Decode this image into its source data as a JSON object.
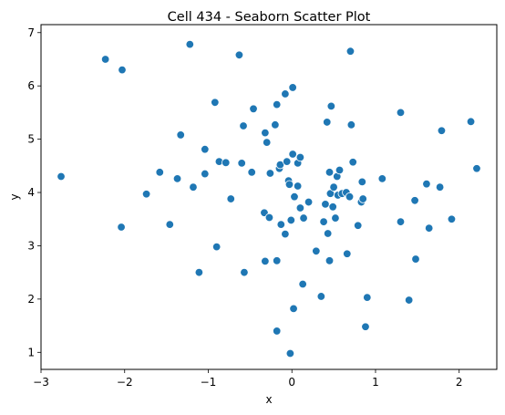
{
  "chart_data": {
    "type": "scatter",
    "title": "Cell 434 - Seaborn Scatter Plot",
    "xlabel": "x",
    "ylabel": "y",
    "xlim": [
      -3.0,
      2.45
    ],
    "ylim": [
      0.68,
      7.15
    ],
    "xticks": [
      -3,
      -2,
      -1,
      0,
      1,
      2
    ],
    "yticks": [
      1,
      2,
      3,
      4,
      5,
      6,
      7
    ],
    "grid": false,
    "marker_color": "#1f77b4",
    "marker_edge": "#ffffff",
    "points": [
      [
        -2.76,
        4.3
      ],
      [
        -2.23,
        6.5
      ],
      [
        -2.04,
        3.35
      ],
      [
        -2.03,
        6.3
      ],
      [
        -1.74,
        3.97
      ],
      [
        -1.58,
        4.38
      ],
      [
        -1.46,
        3.4
      ],
      [
        -1.37,
        4.26
      ],
      [
        -1.33,
        5.08
      ],
      [
        -1.18,
        4.1
      ],
      [
        -1.22,
        6.78
      ],
      [
        -1.11,
        2.5
      ],
      [
        -1.04,
        4.81
      ],
      [
        -1.04,
        4.35
      ],
      [
        -0.92,
        5.69
      ],
      [
        -0.9,
        2.98
      ],
      [
        -0.87,
        4.58
      ],
      [
        -0.79,
        4.56
      ],
      [
        -0.73,
        3.88
      ],
      [
        -0.63,
        6.58
      ],
      [
        -0.6,
        4.55
      ],
      [
        -0.58,
        5.25
      ],
      [
        -0.57,
        2.5
      ],
      [
        -0.48,
        4.38
      ],
      [
        -0.46,
        5.57
      ],
      [
        -0.33,
        3.62
      ],
      [
        -0.32,
        2.71
      ],
      [
        -0.32,
        5.12
      ],
      [
        -0.3,
        4.94
      ],
      [
        -0.27,
        3.53
      ],
      [
        -0.26,
        4.36
      ],
      [
        -0.2,
        5.27
      ],
      [
        -0.18,
        5.65
      ],
      [
        -0.18,
        2.72
      ],
      [
        -0.18,
        1.4
      ],
      [
        -0.15,
        4.45
      ],
      [
        -0.14,
        4.52
      ],
      [
        -0.13,
        3.4
      ],
      [
        -0.08,
        5.85
      ],
      [
        -0.08,
        3.22
      ],
      [
        -0.06,
        4.58
      ],
      [
        -0.04,
        4.22
      ],
      [
        -0.03,
        4.15
      ],
      [
        -0.02,
        0.98
      ],
      [
        -0.01,
        3.48
      ],
      [
        0.01,
        5.97
      ],
      [
        0.01,
        4.72
      ],
      [
        0.02,
        1.82
      ],
      [
        0.03,
        3.92
      ],
      [
        0.07,
        4.55
      ],
      [
        0.07,
        4.12
      ],
      [
        0.1,
        3.71
      ],
      [
        0.1,
        4.66
      ],
      [
        0.13,
        2.28
      ],
      [
        0.14,
        3.52
      ],
      [
        0.2,
        3.82
      ],
      [
        0.29,
        2.9
      ],
      [
        0.35,
        2.05
      ],
      [
        0.38,
        3.45
      ],
      [
        0.4,
        3.78
      ],
      [
        0.42,
        5.32
      ],
      [
        0.43,
        3.23
      ],
      [
        0.45,
        4.38
      ],
      [
        0.45,
        2.72
      ],
      [
        0.46,
        3.98
      ],
      [
        0.47,
        5.62
      ],
      [
        0.49,
        3.73
      ],
      [
        0.5,
        4.1
      ],
      [
        0.52,
        3.52
      ],
      [
        0.54,
        4.3
      ],
      [
        0.55,
        3.95
      ],
      [
        0.57,
        4.42
      ],
      [
        0.6,
        3.98
      ],
      [
        0.65,
        4.0
      ],
      [
        0.66,
        2.85
      ],
      [
        0.69,
        3.92
      ],
      [
        0.7,
        6.65
      ],
      [
        0.71,
        5.27
      ],
      [
        0.73,
        4.57
      ],
      [
        0.79,
        3.38
      ],
      [
        0.83,
        3.82
      ],
      [
        0.84,
        4.2
      ],
      [
        0.85,
        3.88
      ],
      [
        0.88,
        1.48
      ],
      [
        0.9,
        2.03
      ],
      [
        1.08,
        4.26
      ],
      [
        1.3,
        3.45
      ],
      [
        1.3,
        5.5
      ],
      [
        1.4,
        1.98
      ],
      [
        1.47,
        3.85
      ],
      [
        1.48,
        2.75
      ],
      [
        1.61,
        4.16
      ],
      [
        1.64,
        3.33
      ],
      [
        1.77,
        4.1
      ],
      [
        1.79,
        5.16
      ],
      [
        1.91,
        3.5
      ],
      [
        2.14,
        5.33
      ],
      [
        2.21,
        4.45
      ]
    ]
  }
}
